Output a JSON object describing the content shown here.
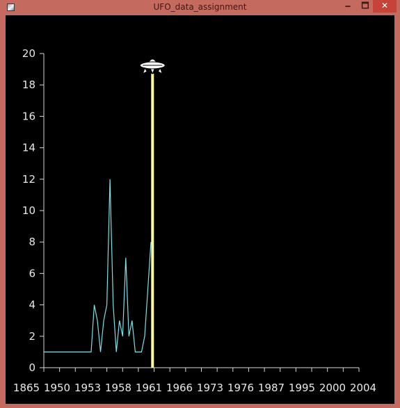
{
  "window": {
    "title": "UFO_data_assignment",
    "minimize_glyph": "🗕",
    "maximize_glyph": "🗖",
    "close_glyph": "✕",
    "frame_color": "#c46a5f",
    "close_color": "#c7433a"
  },
  "chart_data": {
    "type": "line",
    "title": "",
    "xlabel": "",
    "ylabel": "",
    "ylim": [
      0,
      20
    ],
    "y_ticks": [
      0,
      2,
      4,
      6,
      8,
      10,
      12,
      14,
      16,
      18,
      20
    ],
    "x_tick_labels": [
      "1865",
      "1950",
      "1953",
      "1958",
      "1961",
      "1966",
      "1973",
      "1976",
      "1987",
      "1995",
      "2000",
      "2004"
    ],
    "series": [
      {
        "color": "#7fe0e6",
        "points": [
          {
            "x": 0,
            "y": 1
          },
          {
            "x": 1,
            "y": 1
          },
          {
            "x": 2,
            "y": 1
          },
          {
            "x": 3,
            "y": 1
          },
          {
            "x": 4,
            "y": 1
          },
          {
            "x": 5,
            "y": 1
          },
          {
            "x": 6,
            "y": 1
          },
          {
            "x": 7,
            "y": 1
          },
          {
            "x": 8,
            "y": 1
          },
          {
            "x": 9,
            "y": 1
          },
          {
            "x": 10,
            "y": 1
          },
          {
            "x": 11,
            "y": 1
          },
          {
            "x": 12,
            "y": 1
          },
          {
            "x": 13,
            "y": 1
          },
          {
            "x": 14,
            "y": 1
          },
          {
            "x": 15,
            "y": 1
          },
          {
            "x": 16,
            "y": 4
          },
          {
            "x": 17,
            "y": 3
          },
          {
            "x": 18,
            "y": 1
          },
          {
            "x": 19,
            "y": 3
          },
          {
            "x": 20,
            "y": 4
          },
          {
            "x": 21,
            "y": 12
          },
          {
            "x": 22,
            "y": 4
          },
          {
            "x": 23,
            "y": 1
          },
          {
            "x": 24,
            "y": 3
          },
          {
            "x": 25,
            "y": 2
          },
          {
            "x": 26,
            "y": 7
          },
          {
            "x": 27,
            "y": 2
          },
          {
            "x": 28,
            "y": 3
          },
          {
            "x": 29,
            "y": 1
          },
          {
            "x": 30,
            "y": 1
          },
          {
            "x": 31,
            "y": 1
          },
          {
            "x": 32,
            "y": 2
          },
          {
            "x": 33,
            "y": 5
          },
          {
            "x": 34,
            "y": 8
          }
        ]
      }
    ],
    "x_slots": 100,
    "marker": {
      "x": 34.5,
      "color": "#fafaa0",
      "icon": "ufo-icon"
    }
  }
}
